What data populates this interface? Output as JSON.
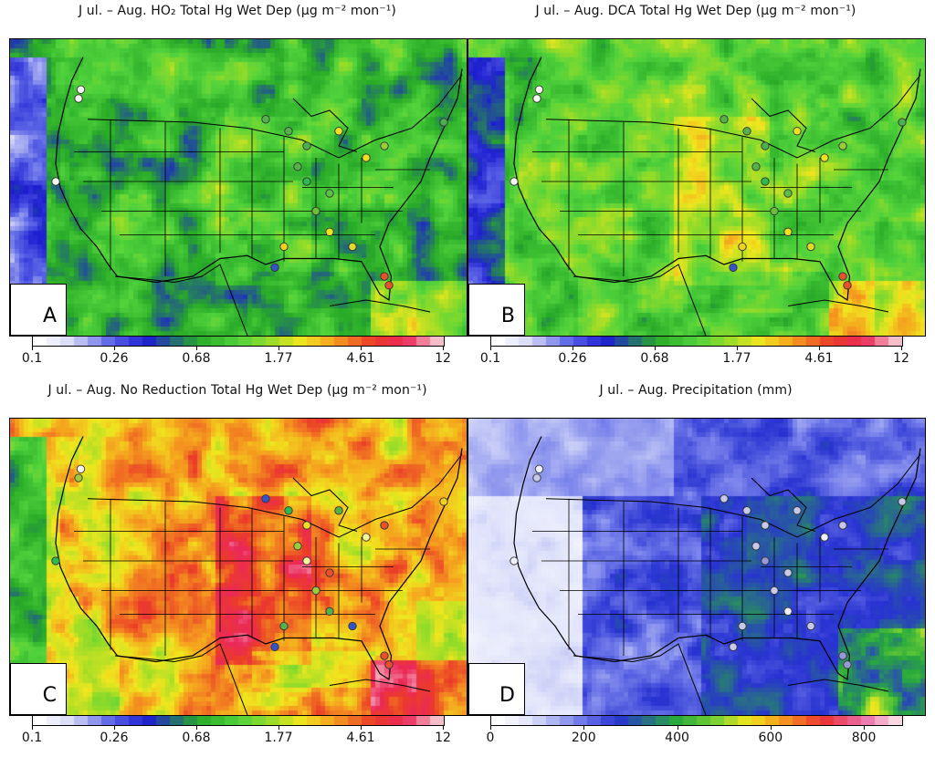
{
  "panels": [
    {
      "id": "A",
      "title": "J ul. – Aug. HO₂ Total Hg Wet Dep (μg m⁻² mon⁻¹)",
      "scheme": "dep",
      "bias": 0.0,
      "label": "A",
      "colorbar_ticks": [
        "0.1",
        "0.26",
        "0.68",
        "1.77",
        "4.61",
        "12"
      ]
    },
    {
      "id": "B",
      "title": "J ul. – Aug. DCA Total Hg Wet Dep (μg m⁻² mon⁻¹)",
      "scheme": "dep",
      "bias": 0.08,
      "label": "B",
      "colorbar_ticks": [
        "0.1",
        "0.26",
        "0.68",
        "1.77",
        "4.61",
        "12"
      ]
    },
    {
      "id": "C",
      "title": "J ul. – Aug. No Reduction Total Hg Wet Dep (μg m⁻² mon⁻¹)",
      "scheme": "dep",
      "bias": 0.28,
      "label": "C",
      "colorbar_ticks": [
        "0.1",
        "0.26",
        "0.68",
        "1.77",
        "4.61",
        "12"
      ]
    },
    {
      "id": "D",
      "title": "J ul. – Aug. Precipitation (mm)",
      "scheme": "precip",
      "bias": 0.0,
      "label": "D",
      "colorbar_ticks": [
        "0",
        "200",
        "400",
        "600",
        "800"
      ]
    }
  ],
  "station_colors": {
    "A": [
      "#f5f5f5",
      "#f5f5f5",
      "#f5f5f5",
      "#55b24a",
      "#55b24a",
      "#f0e020",
      "#4caf50",
      "#55b24a",
      "#f0e020",
      "#9ccc3c",
      "#2dba4e",
      "#5bbf4a",
      "#6cbf3a",
      "#f0e020",
      "#e0dc28",
      "#3553c8",
      "#f0d020",
      "#e85030",
      "#e85030",
      "#4caf50"
    ],
    "B": [
      "#f5f5f5",
      "#f5f5f5",
      "#f5f5f5",
      "#55b24a",
      "#55b24a",
      "#f0e020",
      "#4caf50",
      "#55b24a",
      "#f0e020",
      "#9ccc3c",
      "#2dba4e",
      "#5bbf4a",
      "#6cbf3a",
      "#f0e020",
      "#e0dc28",
      "#3553c8",
      "#f0d020",
      "#e85030",
      "#e85030",
      "#4caf50"
    ],
    "C": [
      "#f5f5f5",
      "#9ccc3c",
      "#2dba4e",
      "#3553c8",
      "#2dba4e",
      "#55b24a",
      "#f0e020",
      "#9ccc3c",
      "#f5f5a0",
      "#e85030",
      "#f5f5a0",
      "#e85030",
      "#9ccc3c",
      "#55b24a",
      "#3553c8",
      "#3553c8",
      "#55b24a",
      "#e85030",
      "#e85030",
      "#f0d020"
    ],
    "D": [
      "#f0f0f8",
      "#c8c8e8",
      "#f0f0f8",
      "#c8c8e8",
      "#c8c8e8",
      "#c8c8e8",
      "#c8c8e8",
      "#c8c8e8",
      "#f0f0f8",
      "#c8c8e8",
      "#9898d8",
      "#c8c8e8",
      "#c8c8e8",
      "#f0f0f8",
      "#c8c8e8",
      "#c8c8e8",
      "#c8c8e8",
      "#9898d8",
      "#9898d8",
      "#c8c8e8"
    ]
  }
}
